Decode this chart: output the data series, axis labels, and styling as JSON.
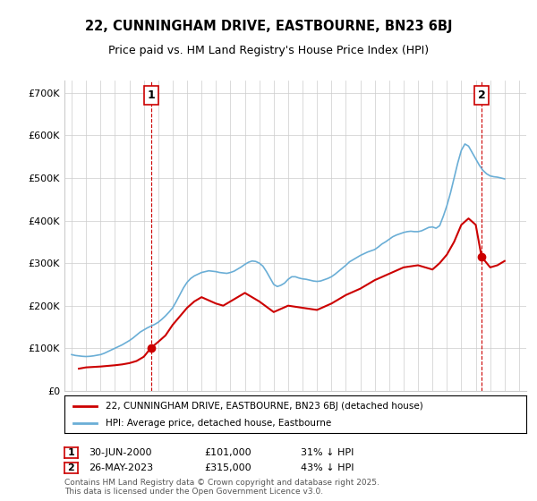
{
  "title": "22, CUNNINGHAM DRIVE, EASTBOURNE, BN23 6BJ",
  "subtitle": "Price paid vs. HM Land Registry's House Price Index (HPI)",
  "ylabel_ticks": [
    "£0",
    "£100K",
    "£200K",
    "£300K",
    "£400K",
    "£500K",
    "£600K",
    "£700K"
  ],
  "ytick_values": [
    0,
    100000,
    200000,
    300000,
    400000,
    500000,
    600000,
    700000
  ],
  "ylim": [
    0,
    730000
  ],
  "xlim_start": 1994.5,
  "xlim_end": 2026.5,
  "xticks": [
    1995,
    1996,
    1997,
    1998,
    1999,
    2000,
    2001,
    2002,
    2003,
    2004,
    2005,
    2006,
    2007,
    2008,
    2009,
    2010,
    2011,
    2012,
    2013,
    2014,
    2015,
    2016,
    2017,
    2018,
    2019,
    2020,
    2021,
    2022,
    2023,
    2024,
    2025,
    2026
  ],
  "hpi_color": "#6aaed6",
  "price_color": "#cc0000",
  "vline_color": "#cc0000",
  "grid_color": "#cccccc",
  "background_color": "#ffffff",
  "legend_label_price": "22, CUNNINGHAM DRIVE, EASTBOURNE, BN23 6BJ (detached house)",
  "legend_label_hpi": "HPI: Average price, detached house, Eastbourne",
  "footnote": "Contains HM Land Registry data © Crown copyright and database right 2025.\nThis data is licensed under the Open Government Licence v3.0.",
  "sale1_label": "1",
  "sale1_date": "30-JUN-2000",
  "sale1_price": "£101,000",
  "sale1_hpi": "31% ↓ HPI",
  "sale1_year": 2000.5,
  "sale1_price_val": 101000,
  "sale2_label": "2",
  "sale2_date": "26-MAY-2023",
  "sale2_price": "£315,000",
  "sale2_hpi": "43% ↓ HPI",
  "sale2_year": 2023.4,
  "sale2_price_val": 315000,
  "hpi_data_x": [
    1995.0,
    1995.25,
    1995.5,
    1995.75,
    1996.0,
    1996.25,
    1996.5,
    1996.75,
    1997.0,
    1997.25,
    1997.5,
    1997.75,
    1998.0,
    1998.25,
    1998.5,
    1998.75,
    1999.0,
    1999.25,
    1999.5,
    1999.75,
    2000.0,
    2000.25,
    2000.5,
    2000.75,
    2001.0,
    2001.25,
    2001.5,
    2001.75,
    2002.0,
    2002.25,
    2002.5,
    2002.75,
    2003.0,
    2003.25,
    2003.5,
    2003.75,
    2004.0,
    2004.25,
    2004.5,
    2004.75,
    2005.0,
    2005.25,
    2005.5,
    2005.75,
    2006.0,
    2006.25,
    2006.5,
    2006.75,
    2007.0,
    2007.25,
    2007.5,
    2007.75,
    2008.0,
    2008.25,
    2008.5,
    2008.75,
    2009.0,
    2009.25,
    2009.5,
    2009.75,
    2010.0,
    2010.25,
    2010.5,
    2010.75,
    2011.0,
    2011.25,
    2011.5,
    2011.75,
    2012.0,
    2012.25,
    2012.5,
    2012.75,
    2013.0,
    2013.25,
    2013.5,
    2013.75,
    2014.0,
    2014.25,
    2014.5,
    2014.75,
    2015.0,
    2015.25,
    2015.5,
    2015.75,
    2016.0,
    2016.25,
    2016.5,
    2016.75,
    2017.0,
    2017.25,
    2017.5,
    2017.75,
    2018.0,
    2018.25,
    2018.5,
    2018.75,
    2019.0,
    2019.25,
    2019.5,
    2019.75,
    2020.0,
    2020.25,
    2020.5,
    2020.75,
    2021.0,
    2021.25,
    2021.5,
    2021.75,
    2022.0,
    2022.25,
    2022.5,
    2022.75,
    2023.0,
    2023.25,
    2023.5,
    2023.75,
    2024.0,
    2024.25,
    2024.5,
    2024.75,
    2025.0
  ],
  "hpi_data_y": [
    85000,
    83000,
    82000,
    81000,
    80500,
    81000,
    82000,
    83500,
    85000,
    88000,
    92000,
    96000,
    100000,
    104000,
    108000,
    113000,
    118000,
    124000,
    131000,
    138000,
    143000,
    148000,
    152000,
    156000,
    161000,
    168000,
    176000,
    185000,
    195000,
    210000,
    226000,
    242000,
    255000,
    264000,
    270000,
    274000,
    278000,
    280000,
    282000,
    281000,
    280000,
    278000,
    277000,
    276000,
    278000,
    281000,
    286000,
    291000,
    297000,
    302000,
    305000,
    304000,
    300000,
    293000,
    280000,
    265000,
    250000,
    245000,
    248000,
    253000,
    262000,
    268000,
    268000,
    265000,
    263000,
    262000,
    260000,
    258000,
    257000,
    258000,
    261000,
    264000,
    268000,
    274000,
    281000,
    288000,
    295000,
    303000,
    308000,
    313000,
    318000,
    322000,
    326000,
    329000,
    332000,
    338000,
    345000,
    350000,
    356000,
    362000,
    366000,
    369000,
    372000,
    374000,
    375000,
    374000,
    374000,
    376000,
    380000,
    384000,
    385000,
    382000,
    388000,
    410000,
    435000,
    465000,
    500000,
    535000,
    565000,
    580000,
    575000,
    560000,
    545000,
    530000,
    518000,
    510000,
    505000,
    503000,
    502000,
    500000,
    498000
  ],
  "price_data_x": [
    1995.5,
    1996.0,
    1997.0,
    1998.0,
    1998.5,
    1999.0,
    1999.5,
    2000.0,
    2000.5,
    2001.0,
    2001.5,
    2002.0,
    2002.5,
    2003.0,
    2003.5,
    2004.0,
    2005.0,
    2005.5,
    2006.0,
    2007.0,
    2008.0,
    2009.0,
    2010.0,
    2011.0,
    2012.0,
    2013.0,
    2014.0,
    2015.0,
    2016.0,
    2017.0,
    2018.0,
    2019.0,
    2020.0,
    2020.5,
    2021.0,
    2021.5,
    2022.0,
    2022.5,
    2023.0,
    2023.4,
    2024.0,
    2024.5,
    2025.0
  ],
  "price_data_y": [
    52000,
    55000,
    57000,
    60000,
    62000,
    65000,
    70000,
    80000,
    101000,
    115000,
    130000,
    155000,
    175000,
    195000,
    210000,
    220000,
    205000,
    200000,
    210000,
    230000,
    210000,
    185000,
    200000,
    195000,
    190000,
    205000,
    225000,
    240000,
    260000,
    275000,
    290000,
    295000,
    285000,
    300000,
    320000,
    350000,
    390000,
    405000,
    390000,
    315000,
    290000,
    295000,
    305000
  ]
}
